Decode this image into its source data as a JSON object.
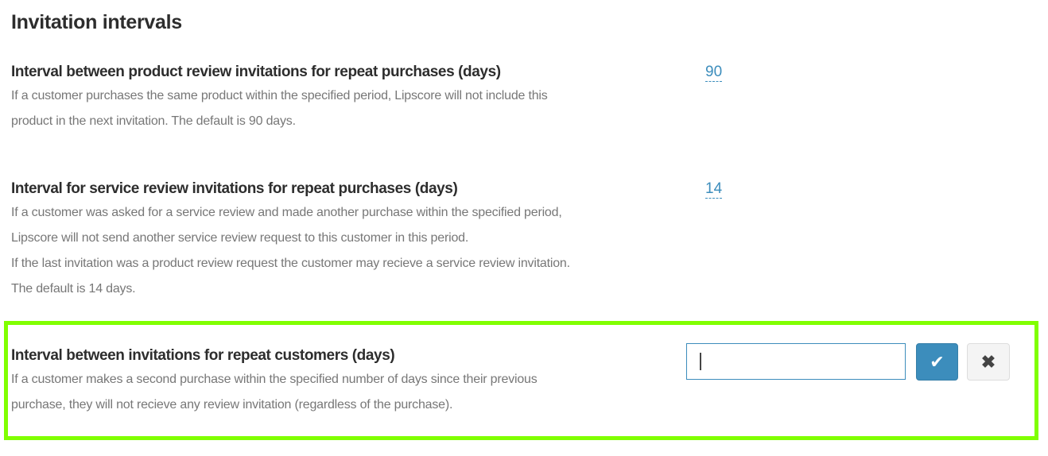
{
  "heading": "Invitation intervals",
  "settings": [
    {
      "title": "Interval between product review invitations for repeat purchases (days)",
      "description": [
        "If a customer purchases the same product within the specified period, Lipscore will not include this",
        "product in the next invitation. The default is 90 days."
      ],
      "value": "90"
    },
    {
      "title": "Interval for service review invitations for repeat purchases (days)",
      "description": [
        "If a customer was asked for a service review and made another purchase within the specified period,",
        "Lipscore will not send another service review request to this customer in this period.",
        "If the last invitation was a product review request the customer may recieve a service review invitation.",
        "The default is 14 days."
      ],
      "value": "14"
    },
    {
      "title": "Interval between invitations for repeat customers (days)",
      "description": [
        "If a customer makes a second purchase within the specified number of days since their previous",
        "purchase, they will not recieve any review invitation (regardless of the purchase)."
      ],
      "value": ""
    }
  ],
  "editor": {
    "confirm_icon": "check-icon",
    "cancel_icon": "close-icon",
    "confirm_glyph": "✔",
    "cancel_glyph": "✖"
  },
  "colors": {
    "accent": "#3c8dbc",
    "highlight": "#80ff00"
  }
}
